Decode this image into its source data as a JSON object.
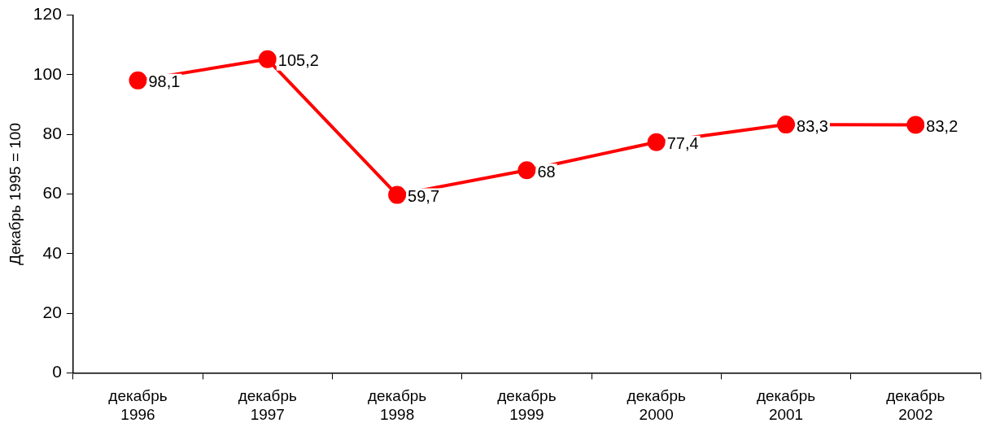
{
  "chart_data": {
    "type": "line",
    "ylabel": "Декабрь 1995 = 100",
    "categories": [
      "декабрь 1996",
      "декабрь 1997",
      "декабрь 1998",
      "декабрь 1999",
      "декабрь 2000",
      "декабрь 2001",
      "декабрь 2002"
    ],
    "series": [
      {
        "color": "#ff0000",
        "values": [
          98.1,
          105.2,
          59.7,
          68,
          77.4,
          83.3,
          83.2
        ],
        "value_labels": [
          "98,1",
          "105,2",
          "59,7",
          "68",
          "77,4",
          "83,3",
          "83,2"
        ]
      }
    ],
    "ylim": [
      0,
      120
    ],
    "yticks": [
      0,
      20,
      40,
      60,
      80,
      100,
      120
    ],
    "grid": false,
    "legend": false,
    "marker": "circle",
    "line_style": "solid"
  }
}
